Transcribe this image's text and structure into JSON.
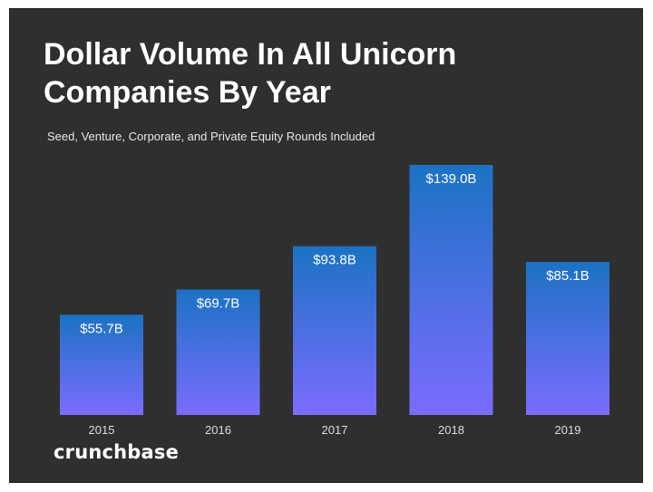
{
  "title_line1": "Dollar Volume In All Unicorn",
  "title_line2": "Companies By Year",
  "subtitle": "Seed, Venture, Corporate, and Private Equity Rounds Included",
  "logo": "crunchbase",
  "colors": {
    "background": "#2f2f2f",
    "bar_top": "#1b72c4",
    "bar_bottom": "#7b6cff",
    "label": "#ffffff",
    "tick": "#dddddd"
  },
  "chart_data": {
    "type": "bar",
    "title": "Dollar Volume In All Unicorn Companies By Year",
    "subtitle": "Seed, Venture, Corporate, and Private Equity Rounds Included",
    "categories": [
      "2015",
      "2016",
      "2017",
      "2018",
      "2019"
    ],
    "values": [
      55.7,
      69.7,
      93.8,
      139.0,
      85.1
    ],
    "data_labels": [
      "$55.7B",
      "$69.7B",
      "$93.8B",
      "$139.0B",
      "$85.1B"
    ],
    "xlabel": "",
    "ylabel": "",
    "ylim": [
      0,
      142
    ],
    "grid": false,
    "legend": "none"
  }
}
